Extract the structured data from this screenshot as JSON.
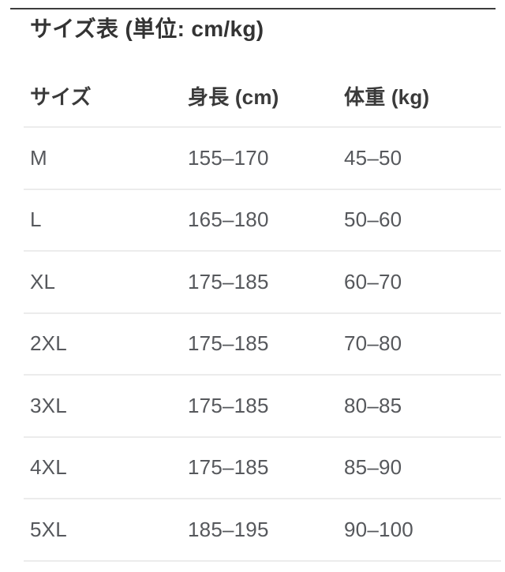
{
  "title": "サイズ表 (単位: cm/kg)",
  "table": {
    "columns": [
      {
        "label": "サイズ"
      },
      {
        "label": "身長 (cm)"
      },
      {
        "label": "体重 (kg)"
      }
    ],
    "rows": [
      {
        "size": "M",
        "height": "155–170",
        "weight": "45–50"
      },
      {
        "size": "L",
        "height": "165–180",
        "weight": "50–60"
      },
      {
        "size": "XL",
        "height": "175–185",
        "weight": "60–70"
      },
      {
        "size": "2XL",
        "height": "175–185",
        "weight": "70–80"
      },
      {
        "size": "3XL",
        "height": "175–185",
        "weight": "80–85"
      },
      {
        "size": "4XL",
        "height": "175–185",
        "weight": "85–90"
      },
      {
        "size": "5XL",
        "height": "185–195",
        "weight": "90–100"
      }
    ]
  },
  "colors": {
    "top_rule": "#3c3c3c",
    "divider": "#ececec",
    "title_text": "#333333",
    "header_text": "#3a3a3a",
    "body_text": "#56585c"
  }
}
